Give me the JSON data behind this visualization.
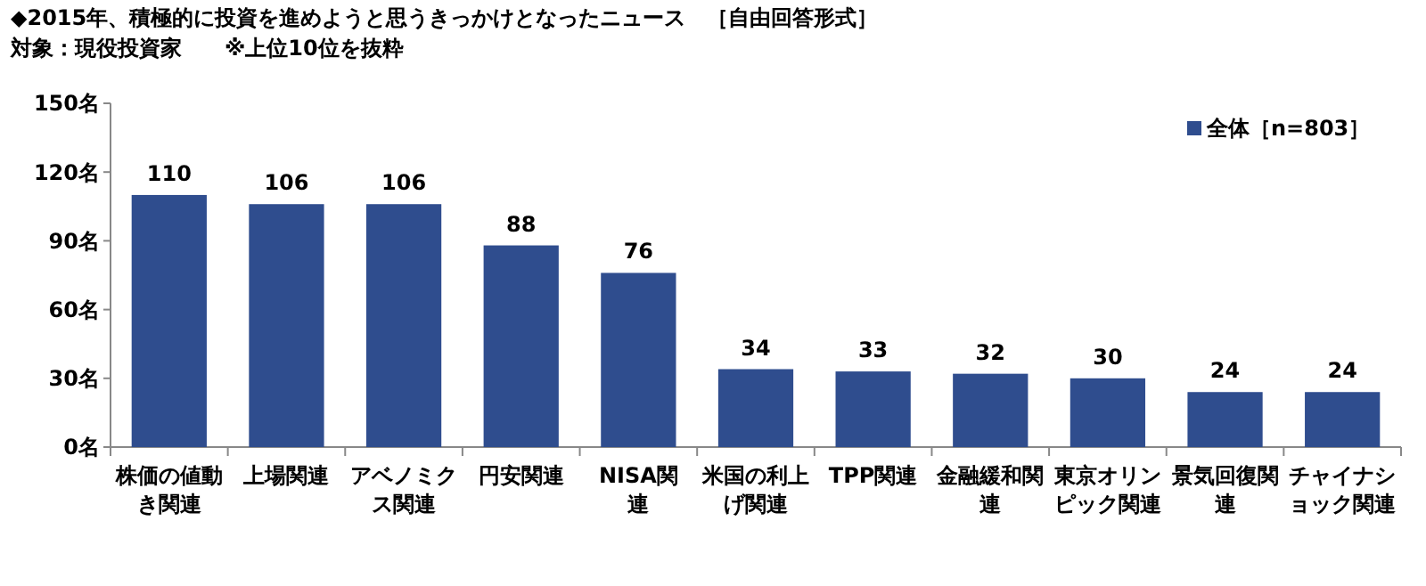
{
  "chart_data": {
    "type": "bar",
    "title": "◆2015年、積極的に投資を進めようと思うきっかけとなったニュース　［自由回答形式］",
    "subtitle": "対象：現役投資家　　※上位10位を抜粋",
    "categories": [
      "株価の値動き関連",
      "上場関連",
      "アベノミクス関連",
      "円安関連",
      "NISA関連",
      "米国の利上げ関連",
      "TPP関連",
      "金融緩和関連",
      "東京オリンピック関連",
      "景気回復関連",
      "チャイナショック関連"
    ],
    "series": [
      {
        "name": "全体［n=803］",
        "color": "#2f4d8e",
        "values": [
          110,
          106,
          106,
          88,
          76,
          34,
          33,
          32,
          30,
          24,
          24
        ]
      }
    ],
    "ylim": [
      0,
      150
    ],
    "yticks": [
      {
        "value": 0,
        "label": "0名"
      },
      {
        "value": 30,
        "label": "30名"
      },
      {
        "value": 60,
        "label": "60名"
      },
      {
        "value": 90,
        "label": "90名"
      },
      {
        "value": 120,
        "label": "120名"
      },
      {
        "value": 150,
        "label": "150名"
      }
    ],
    "data_labels": true,
    "legend": "top right",
    "grid": false
  }
}
